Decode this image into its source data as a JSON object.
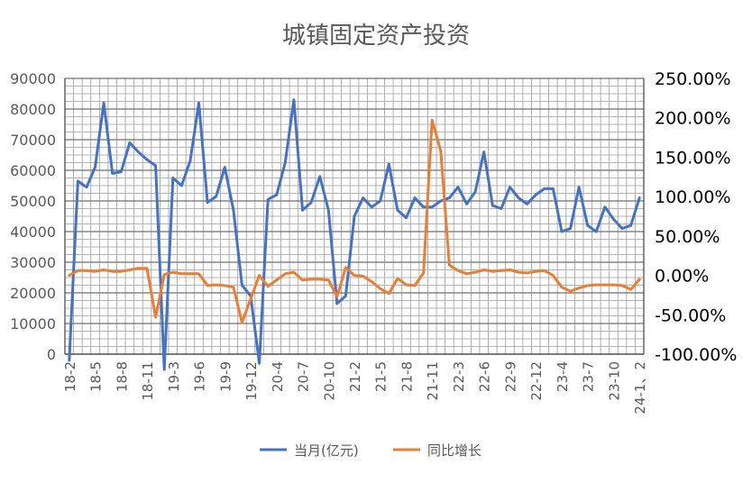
{
  "chart_data": {
    "type": "line",
    "title": "城镇固定资产投资",
    "categories": [
      "18-2",
      "18-3",
      "18-4",
      "18-5",
      "18-6",
      "18-7",
      "18-8",
      "18-9",
      "18-10",
      "18-11",
      "18-12",
      "19-2",
      "19-3",
      "19-4",
      "19-5",
      "19-6",
      "19-7",
      "19-8",
      "19-9",
      "19-10",
      "19-11",
      "19-12",
      "20-2",
      "20-3",
      "20-4",
      "20-5",
      "20-6",
      "20-7",
      "20-8",
      "20-9",
      "20-10",
      "20-11",
      "20-12",
      "21-2",
      "21-3",
      "21-4",
      "21-5",
      "21-6",
      "21-7",
      "21-8",
      "21-9",
      "21-10",
      "21-11",
      "21-12",
      "22-2",
      "22-3",
      "22-4",
      "22-5",
      "22-6",
      "22-7",
      "22-8",
      "22-9",
      "22-10",
      "22-11",
      "22-12",
      "23-2",
      "23-3",
      "23-4",
      "23-5",
      "23-6",
      "23-7",
      "23-8",
      "23-9",
      "23-10",
      "23-11",
      "23-12",
      "24-1、2"
    ],
    "x_tick_labels": [
      "18-2",
      "18-5",
      "18-8",
      "18-11",
      "19-3",
      "19-6",
      "19-9",
      "19-12",
      "20-4",
      "20-7",
      "20-10",
      "21-2",
      "21-5",
      "21-8",
      "21-11",
      "22-3",
      "22-6",
      "22-9",
      "22-12",
      "23-4",
      "23-7",
      "23-10",
      "24-1、2"
    ],
    "series": [
      {
        "name": "当月(亿元)",
        "axis": "left",
        "color": "#4472C4",
        "values": [
          -2000,
          56500,
          54500,
          61000,
          82000,
          59000,
          59500,
          69000,
          66000,
          63500,
          61500,
          -5000,
          57500,
          55000,
          63000,
          82000,
          49500,
          51500,
          61000,
          47000,
          22500,
          19000,
          -3000,
          50500,
          52000,
          62500,
          83000,
          47000,
          49500,
          58000,
          47000,
          16500,
          19000,
          45000,
          51000,
          48000,
          50000,
          62000,
          47000,
          44500,
          51000,
          48000,
          48000,
          50000,
          51000,
          54500,
          49000,
          53000,
          66000,
          48500,
          47500,
          54500,
          51000,
          49000,
          52000,
          54000,
          54000,
          40000,
          41000,
          54500,
          42000,
          40000,
          48000,
          44000,
          41000,
          42000,
          51000
        ]
      },
      {
        "name": "同比增长",
        "axis": "right",
        "color": "#ED7D31",
        "values": [
          0.0,
          0.06,
          0.06,
          0.05,
          0.07,
          0.05,
          0.05,
          0.07,
          0.09,
          0.09,
          -0.53,
          0.01,
          0.04,
          0.02,
          0.02,
          0.02,
          -0.13,
          -0.12,
          -0.13,
          -0.15,
          -0.6,
          -0.3,
          0.0,
          -0.14,
          -0.06,
          0.02,
          0.04,
          -0.06,
          -0.05,
          -0.05,
          -0.06,
          -0.27,
          0.1,
          0.0,
          -0.01,
          -0.08,
          -0.17,
          -0.23,
          -0.04,
          -0.12,
          -0.13,
          0.03,
          1.97,
          1.58,
          0.13,
          0.06,
          0.02,
          0.04,
          0.07,
          0.05,
          0.06,
          0.07,
          0.04,
          0.03,
          0.05,
          0.06,
          0.0,
          -0.15,
          -0.2,
          -0.16,
          -0.13,
          -0.12,
          -0.12,
          -0.12,
          -0.13,
          -0.18,
          -0.05
        ]
      }
    ],
    "y_left": {
      "min": 0,
      "max": 90000,
      "ticks": [
        "0",
        "10000",
        "20000",
        "30000",
        "40000",
        "50000",
        "60000",
        "70000",
        "80000",
        "90000"
      ]
    },
    "y_right": {
      "min": -1.0,
      "max": 2.5,
      "ticks": [
        "-100.00%",
        "-50.00%",
        "0.00%",
        "50.00%",
        "100.00%",
        "150.00%",
        "200.00%",
        "250.00%"
      ]
    },
    "grid": true,
    "legend": "bottom"
  }
}
